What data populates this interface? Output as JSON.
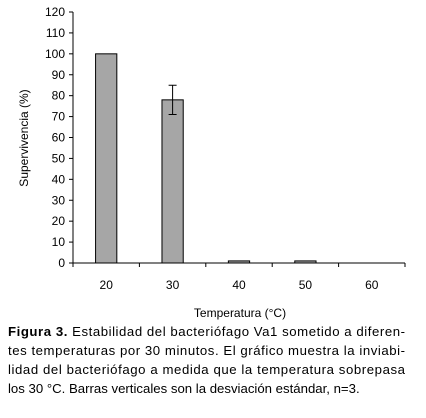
{
  "chart_data": {
    "type": "bar",
    "categories": [
      "20",
      "30",
      "40",
      "50",
      "60"
    ],
    "values": [
      100,
      78,
      1,
      1,
      0
    ],
    "errors": [
      null,
      7,
      null,
      null,
      null
    ],
    "color": "#a6a6a6",
    "ylim": [
      0,
      120
    ],
    "yticks": [
      0,
      10,
      20,
      30,
      40,
      50,
      60,
      70,
      80,
      90,
      100,
      110,
      120
    ],
    "x_label": "Temperatura (°C)",
    "y_label": "Supervivencia (%)",
    "grid": false
  },
  "caption": {
    "label": "Figura 3.",
    "lines": [
      " Estabilidad del bacteriófago Va1 sometido a diferen-",
      "tes temperaturas por 30 minutos. El gráfico muestra la inviabi-",
      "lidad del bacteriófago a medida que la temperatura sobrepasa",
      "los 30 °C. Barras verticales son la desviación estándar, n=3."
    ]
  }
}
